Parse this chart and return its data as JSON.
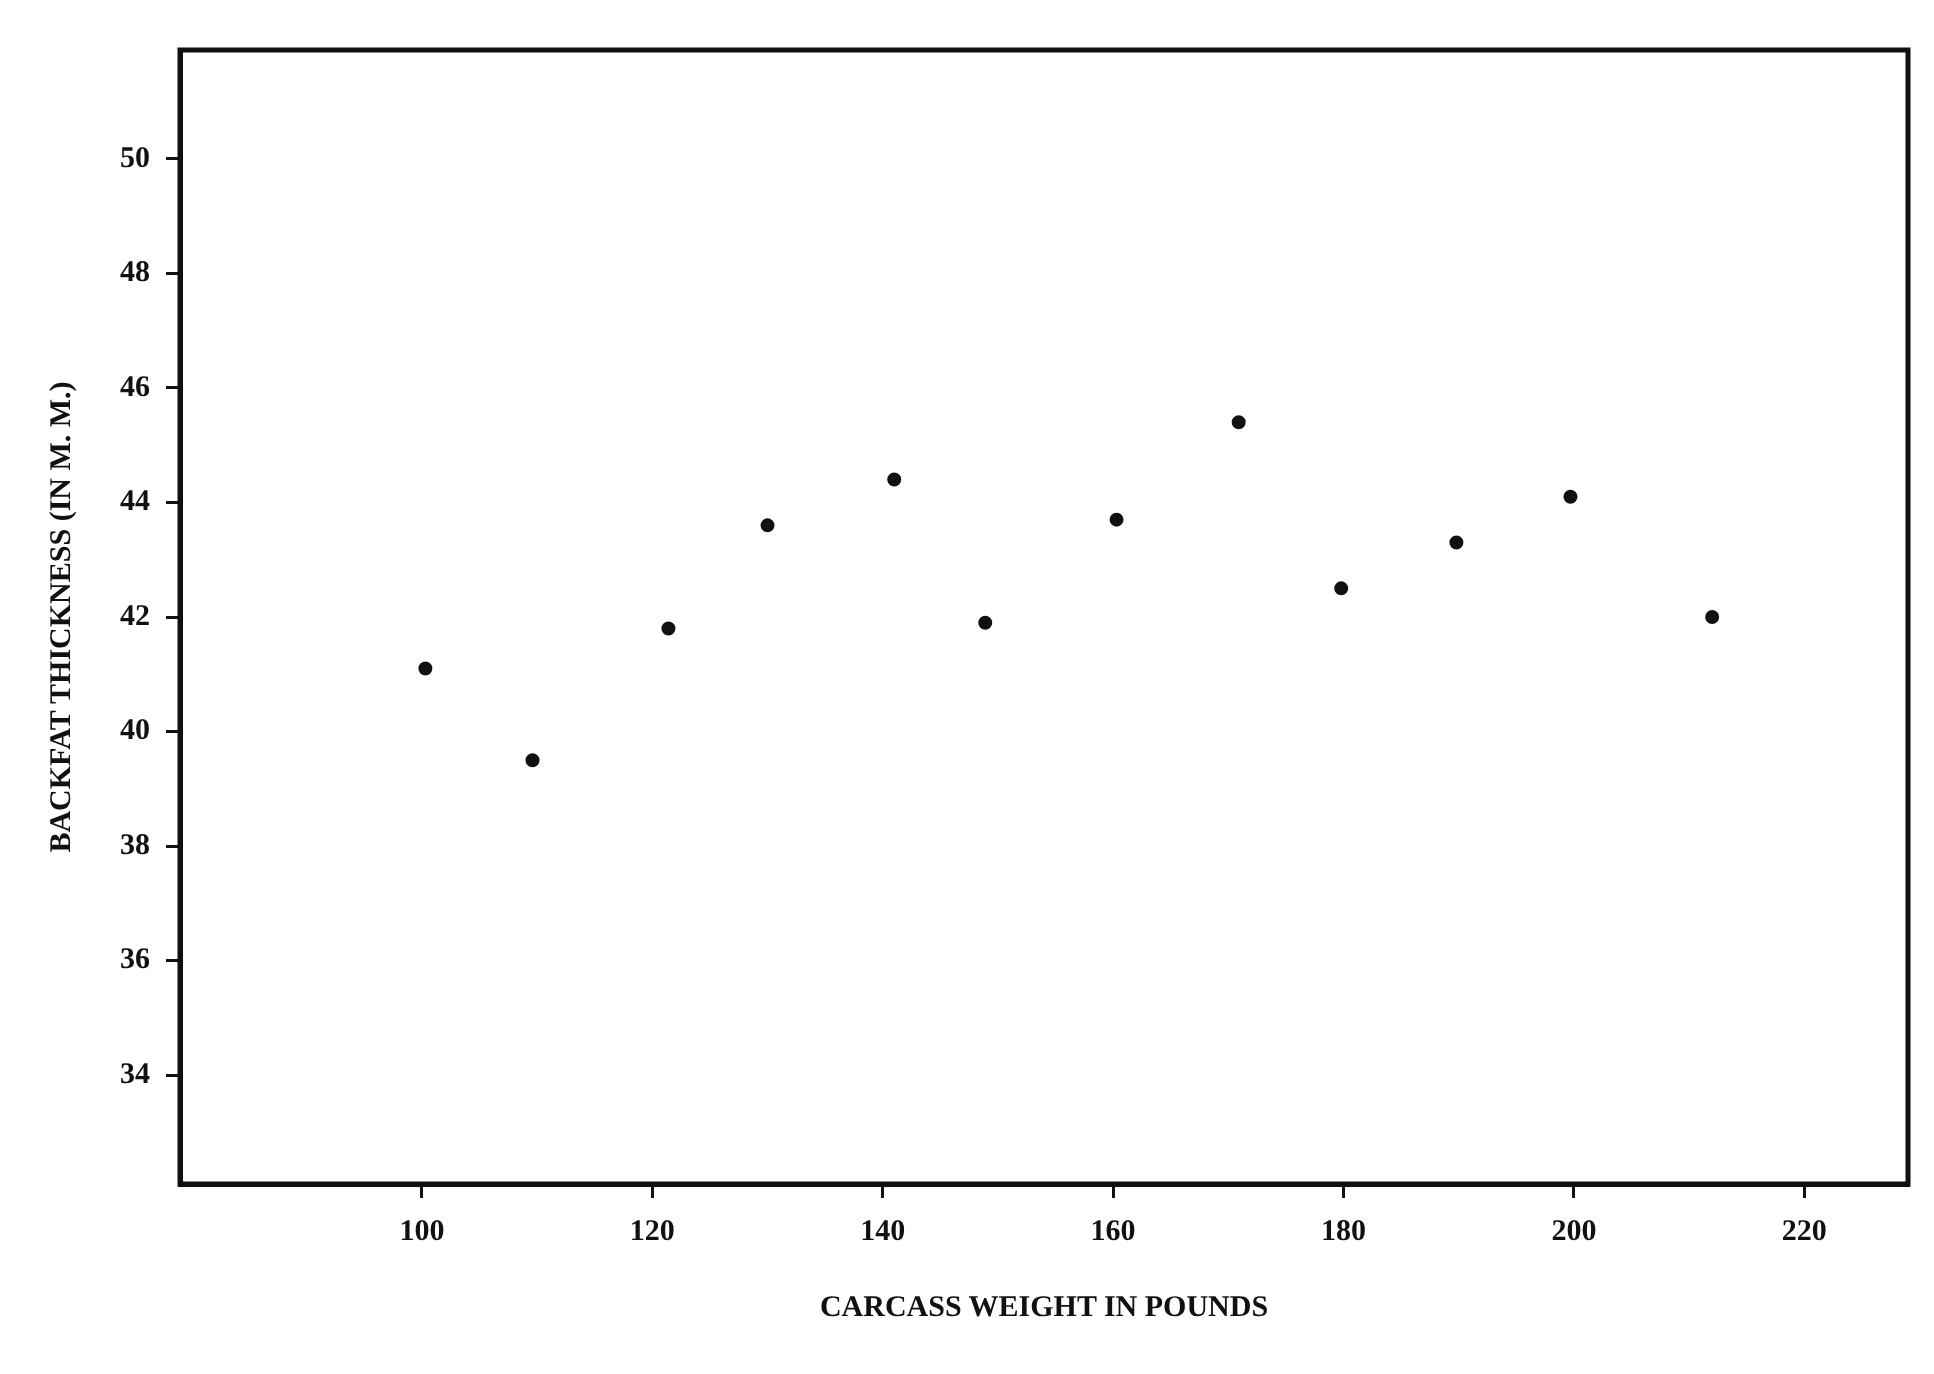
{
  "chart_data": {
    "type": "scatter",
    "xlabel": "CARCASS WEIGHT IN POUNDS",
    "ylabel": "BACKFAT THICKNESS (IN M. M.)",
    "x": [
      100.3,
      109.6,
      121.4,
      130,
      141,
      148.9,
      160.3,
      170.9,
      179.8,
      189.8,
      199.7,
      212
    ],
    "series": [
      {
        "color": "#111111",
        "values": [
          41.1,
          39.5,
          41.8,
          43.6,
          44.4,
          41.9,
          43.7,
          45.4,
          42.5,
          43.3,
          44.1,
          42
        ]
      }
    ],
    "xlim": [
      79,
      229
    ],
    "xticks": [
      100,
      120,
      140,
      160,
      180,
      200,
      220
    ],
    "ylim": [
      32.1,
      51.9
    ],
    "yticks": [
      34,
      36,
      38,
      40,
      42,
      44,
      46,
      48,
      50
    ],
    "grid": false,
    "legend": false,
    "marker": "circle"
  }
}
